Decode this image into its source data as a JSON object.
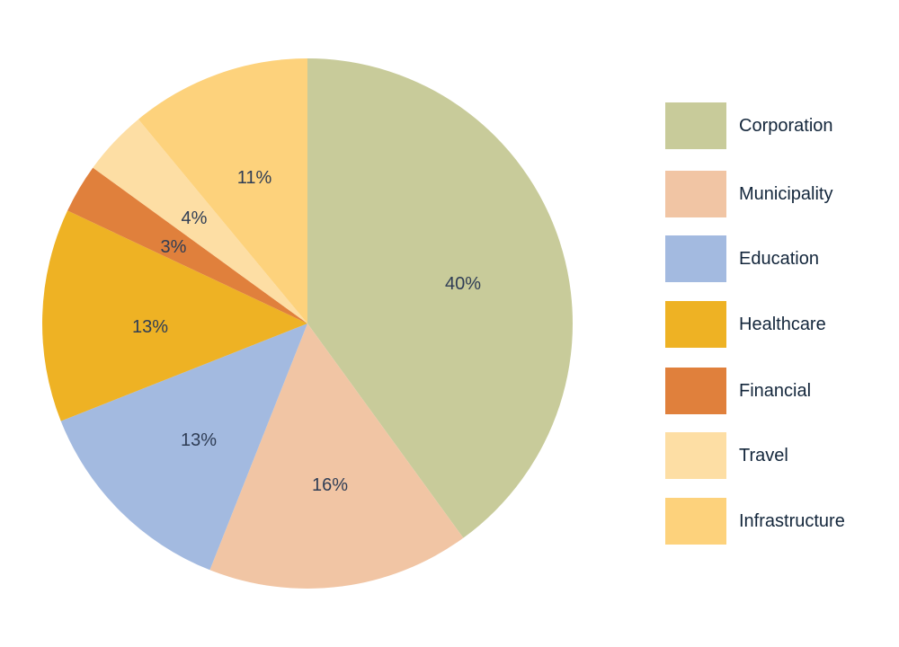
{
  "chart_data": {
    "type": "pie",
    "title": "",
    "start_angle_deg": 0,
    "direction": "clockwise",
    "legend_position": "right",
    "slices": [
      {
        "label": "Corporation",
        "value": 40,
        "display": "40%",
        "color": "#c8cb9a"
      },
      {
        "label": "Municipality",
        "value": 16,
        "display": "16%",
        "color": "#f1c5a4"
      },
      {
        "label": "Education",
        "value": 13,
        "display": "13%",
        "color": "#a3bae0"
      },
      {
        "label": "Healthcare",
        "value": 13,
        "display": "13%",
        "color": "#eeb224"
      },
      {
        "label": "Financial",
        "value": 3,
        "display": "3%",
        "color": "#e0803c"
      },
      {
        "label": "Travel",
        "value": 4,
        "display": "4%",
        "color": "#fddea4"
      },
      {
        "label": "Infrastructure",
        "value": 11,
        "display": "11%",
        "color": "#fdd27c"
      }
    ]
  },
  "legend": {
    "items": [
      {
        "label": "Corporation",
        "color": "#c8cb9a"
      },
      {
        "label": "Municipality",
        "color": "#f1c5a4"
      },
      {
        "label": "Education",
        "color": "#a3bae0"
      },
      {
        "label": "Healthcare",
        "color": "#eeb224"
      },
      {
        "label": "Financial",
        "color": "#e0803c"
      },
      {
        "label": "Travel",
        "color": "#fddea4"
      },
      {
        "label": "Infrastructure",
        "color": "#fdd27c"
      }
    ]
  }
}
